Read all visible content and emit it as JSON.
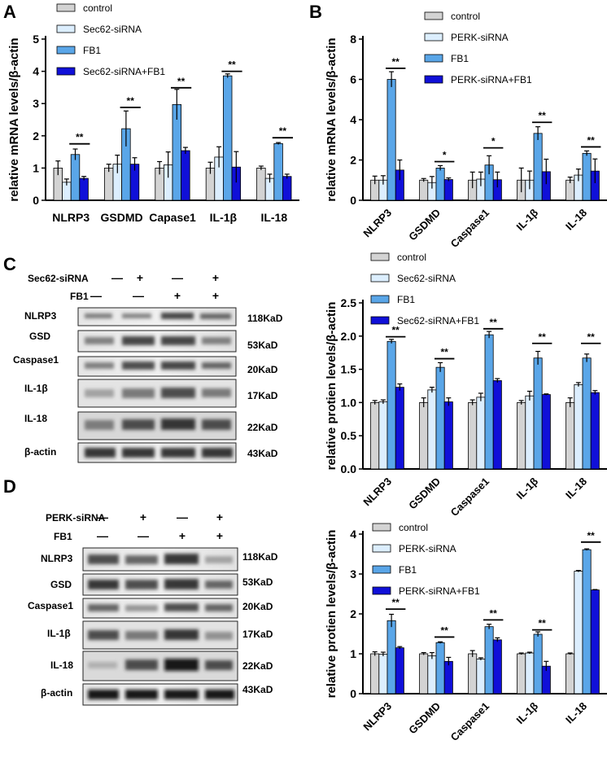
{
  "panel_letters": {
    "A": "A",
    "B": "B",
    "C": "C",
    "D": "D"
  },
  "colors": {
    "control": "#d3d3d3",
    "siRNA": "#dceefe",
    "FB1": "#5aa6e8",
    "combo": "#1010d8",
    "error": "#000000"
  },
  "chart_data": [
    {
      "id": "A",
      "type": "bar",
      "title": "",
      "ylabel": "relative mRNA levels/β-actin",
      "xlabel": "",
      "ylim": [
        0,
        5
      ],
      "yticks": [
        0,
        1,
        2,
        3,
        4,
        5
      ],
      "tick_rotation": 0,
      "legend_position": "top-left",
      "categories": [
        "NLRP3",
        "GSDMD",
        "Capase1",
        "IL-1β",
        "IL-18"
      ],
      "series": [
        {
          "name": "control",
          "values": [
            1.0,
            1.0,
            1.0,
            1.0,
            1.0
          ],
          "errors": [
            0.22,
            0.12,
            0.2,
            0.18,
            0.06
          ]
        },
        {
          "name": "Sec62-siRNA",
          "values": [
            0.56,
            1.12,
            1.1,
            1.34,
            0.68
          ],
          "errors": [
            0.1,
            0.28,
            0.4,
            0.32,
            0.13
          ]
        },
        {
          "name": "FB1",
          "values": [
            1.42,
            2.22,
            2.97,
            3.86,
            1.76
          ],
          "errors": [
            0.17,
            0.55,
            0.47,
            0.06,
            0.03
          ]
        },
        {
          "name": "Sec62-siRNA+FB1",
          "values": [
            0.68,
            1.12,
            1.54,
            1.03,
            0.74
          ],
          "errors": [
            0.06,
            0.2,
            0.1,
            0.48,
            0.07
          ]
        }
      ],
      "significance": [
        {
          "category": 0,
          "label": "**",
          "y": 1.75
        },
        {
          "category": 1,
          "label": "**",
          "y": 2.88
        },
        {
          "category": 2,
          "label": "**",
          "y": 3.49
        },
        {
          "category": 3,
          "label": "**",
          "y": 4.0
        },
        {
          "category": 4,
          "label": "**",
          "y": 1.94
        }
      ]
    },
    {
      "id": "B",
      "type": "bar",
      "title": "",
      "ylabel": "relative mRNA levels/β-actin",
      "xlabel": "",
      "ylim": [
        0,
        8
      ],
      "yticks": [
        0,
        2,
        4,
        6,
        8
      ],
      "tick_rotation": -45,
      "legend_position": "top-right",
      "categories": [
        "NLRP3",
        "GSDMD",
        "Caspase1",
        "IL-1β",
        "IL-18"
      ],
      "series": [
        {
          "name": "control",
          "values": [
            1.0,
            1.0,
            1.0,
            1.0,
            1.0
          ],
          "errors": [
            0.2,
            0.08,
            0.4,
            0.6,
            0.15
          ]
        },
        {
          "name": "PERK-siRNA",
          "values": [
            1.0,
            0.88,
            1.05,
            1.0,
            1.25
          ],
          "errors": [
            0.22,
            0.3,
            0.35,
            0.45,
            0.3
          ]
        },
        {
          "name": "FB1",
          "values": [
            6.0,
            1.6,
            1.75,
            3.32,
            2.33
          ],
          "errors": [
            0.38,
            0.12,
            0.46,
            0.33,
            0.12
          ]
        },
        {
          "name": "PERK-siRNA+FB1",
          "values": [
            1.5,
            1.03,
            1.02,
            1.42,
            1.45
          ],
          "errors": [
            0.5,
            0.08,
            0.38,
            0.62,
            0.6
          ]
        }
      ],
      "significance": [
        {
          "category": 0,
          "label": "**",
          "y": 6.55
        },
        {
          "category": 1,
          "label": "*",
          "y": 1.92
        },
        {
          "category": 2,
          "label": "*",
          "y": 2.6
        },
        {
          "category": 3,
          "label": "**",
          "y": 3.87
        },
        {
          "category": 4,
          "label": "**",
          "y": 2.65
        }
      ]
    },
    {
      "id": "C",
      "type": "bar",
      "title": "",
      "ylabel": "relative protien levels/β-actin",
      "xlabel": "",
      "ylim": [
        0,
        2.5
      ],
      "yticks": [
        0.0,
        0.5,
        1.0,
        1.5,
        2.0,
        2.5
      ],
      "tick_rotation": -45,
      "legend_position": "top-left",
      "categories": [
        "NLRP3",
        "GSDMD",
        "Caspase1",
        "IL-1β",
        "IL-18"
      ],
      "series": [
        {
          "name": "control",
          "values": [
            1.0,
            1.0,
            1.0,
            1.0,
            1.0
          ],
          "errors": [
            0.03,
            0.07,
            0.04,
            0.03,
            0.07
          ]
        },
        {
          "name": "Sec62-siRNA",
          "values": [
            1.01,
            1.19,
            1.08,
            1.1,
            1.27
          ],
          "errors": [
            0.03,
            0.04,
            0.06,
            0.07,
            0.03
          ]
        },
        {
          "name": "FB1",
          "values": [
            1.92,
            1.53,
            2.02,
            1.67,
            1.67
          ],
          "errors": [
            0.03,
            0.07,
            0.05,
            0.1,
            0.06
          ]
        },
        {
          "name": "Sec62-siRNA+FB1",
          "values": [
            1.23,
            1.01,
            1.33,
            1.12,
            1.15
          ],
          "errors": [
            0.05,
            0.06,
            0.03,
            0.01,
            0.03
          ]
        }
      ],
      "significance": [
        {
          "category": 0,
          "label": "**",
          "y": 1.99
        },
        {
          "category": 1,
          "label": "**",
          "y": 1.66
        },
        {
          "category": 2,
          "label": "**",
          "y": 2.11
        },
        {
          "category": 3,
          "label": "**",
          "y": 1.89
        },
        {
          "category": 4,
          "label": "**",
          "y": 1.89
        }
      ]
    },
    {
      "id": "D",
      "type": "bar",
      "title": "",
      "ylabel": "relative protien levels/β-actin",
      "xlabel": "",
      "ylim": [
        0,
        4
      ],
      "yticks": [
        0,
        1,
        2,
        3,
        4
      ],
      "tick_rotation": -45,
      "legend_position": "top-left",
      "categories": [
        "NLRP3",
        "GSDMD",
        "Caspase1",
        "IL-1β",
        "IL-18"
      ],
      "series": [
        {
          "name": "control",
          "values": [
            1.0,
            1.0,
            1.0,
            1.0,
            1.0
          ],
          "errors": [
            0.05,
            0.03,
            0.08,
            0.02,
            0.02
          ]
        },
        {
          "name": "PERK-siRNA",
          "values": [
            0.99,
            0.95,
            0.87,
            1.02,
            3.07
          ],
          "errors": [
            0.05,
            0.08,
            0.03,
            0.02,
            0.02
          ]
        },
        {
          "name": "FB1",
          "values": [
            1.83,
            1.28,
            1.68,
            1.49,
            3.61
          ],
          "errors": [
            0.16,
            0.02,
            0.06,
            0.06,
            0.02
          ]
        },
        {
          "name": "PERK-siRNA+FB1",
          "values": [
            1.15,
            0.81,
            1.35,
            0.69,
            2.6
          ],
          "errors": [
            0.03,
            0.1,
            0.05,
            0.12,
            0.01
          ]
        }
      ],
      "significance": [
        {
          "category": 0,
          "label": "**",
          "y": 2.12
        },
        {
          "category": 1,
          "label": "**",
          "y": 1.42
        },
        {
          "category": 2,
          "label": "**",
          "y": 1.85
        },
        {
          "category": 3,
          "label": "**",
          "y": 1.6
        },
        {
          "category": 4,
          "label": "**",
          "y": 3.8
        }
      ]
    }
  ],
  "blots": {
    "C": {
      "conditions": [
        {
          "label": "Sec62-siRNA",
          "signs": [
            "—",
            "+",
            "—",
            "+"
          ]
        },
        {
          "label": "FB1",
          "signs": [
            "—",
            "—",
            "+",
            "+"
          ]
        }
      ],
      "rows": [
        {
          "protein": "NLRP3",
          "kd": "118KaD"
        },
        {
          "protein": "GSD",
          "kd": "53KaD"
        },
        {
          "protein": "Caspase1",
          "kd": "20KaD"
        },
        {
          "protein": "IL-1β",
          "kd": "17KaD"
        },
        {
          "protein": "IL-18",
          "kd": "22KaD"
        },
        {
          "protein": "β-actin",
          "kd": "43KaD"
        }
      ]
    },
    "D": {
      "conditions": [
        {
          "label": "PERK-siRNA",
          "signs": [
            "—",
            "+",
            "—",
            "+"
          ]
        },
        {
          "label": "FB1",
          "signs": [
            "—",
            "—",
            "+",
            "+"
          ]
        }
      ],
      "rows": [
        {
          "protein": "NLRP3",
          "kd": "118KaD"
        },
        {
          "protein": "GSD",
          "kd": "53KaD"
        },
        {
          "protein": "Caspase1",
          "kd": "20KaD"
        },
        {
          "protein": "IL-1β",
          "kd": "17KaD"
        },
        {
          "protein": "IL-18",
          "kd": "22KaD"
        },
        {
          "protein": "β-actin",
          "kd": "43KaD"
        }
      ]
    }
  }
}
